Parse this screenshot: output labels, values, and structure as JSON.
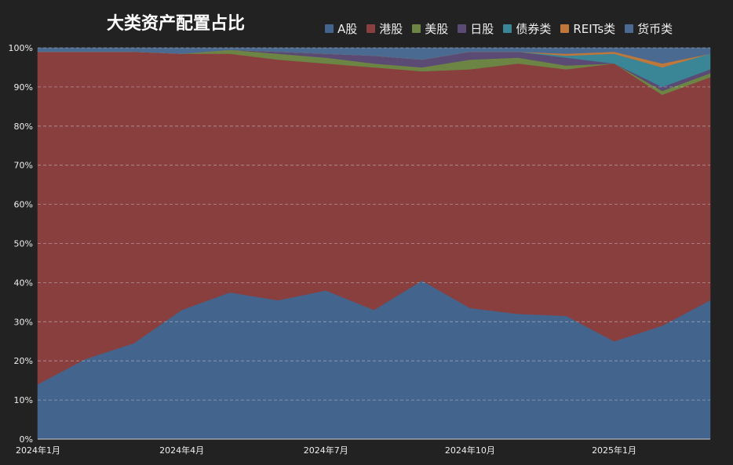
{
  "chart_data": {
    "type": "area",
    "stacked": true,
    "title": "大类资产配置占比",
    "x": [
      "2024-01",
      "2024-02",
      "2024-03",
      "2024-04",
      "2024-05",
      "2024-06",
      "2024-07",
      "2024-08",
      "2024-09",
      "2024-10",
      "2024-11",
      "2024-12",
      "2025-01",
      "2025-02",
      "2025-03"
    ],
    "x_tick_labels": [
      "2024年1月",
      "2024年4月",
      "2024年7月",
      "2024年10月",
      "2025年1月"
    ],
    "x_tick_indices": [
      0,
      3,
      6,
      9,
      12
    ],
    "y_tick_labels": [
      "0%",
      "10%",
      "20%",
      "30%",
      "40%",
      "50%",
      "60%",
      "70%",
      "80%",
      "90%",
      "100%"
    ],
    "ylim": [
      0,
      100
    ],
    "y_unit": "%",
    "grid": true,
    "legend_position": "top",
    "series": [
      {
        "name": "A股",
        "color": "#43658d",
        "values": [
          14,
          20.5,
          24.5,
          33,
          37.5,
          35.5,
          38,
          33,
          40.5,
          33.5,
          32,
          31.5,
          25,
          29,
          35.5
        ]
      },
      {
        "name": "港股",
        "color": "#8a3f3f",
        "values": [
          85,
          78.5,
          74.5,
          65.5,
          61,
          61.5,
          58,
          62,
          53.5,
          61,
          64,
          63,
          71,
          59,
          57
        ]
      },
      {
        "name": "美股",
        "color": "#6c8544",
        "values": [
          0,
          0,
          0,
          0,
          1,
          1.5,
          1.5,
          1,
          1,
          2.5,
          1.5,
          1,
          0,
          1,
          1
        ]
      },
      {
        "name": "日股",
        "color": "#5b4a74",
        "values": [
          0,
          0,
          0,
          0,
          0,
          0.5,
          1,
          2,
          2,
          2,
          1.5,
          2,
          0,
          1,
          1
        ]
      },
      {
        "name": "债券类",
        "color": "#3a8596",
        "values": [
          0,
          0,
          0,
          0,
          0,
          0,
          0,
          0,
          0,
          0,
          0,
          0.5,
          2.5,
          5,
          4
        ]
      },
      {
        "name": "REITs类",
        "color": "#c0783a",
        "values": [
          0,
          0,
          0,
          0,
          0,
          0,
          0,
          0,
          0,
          0,
          0,
          0.5,
          0.5,
          1,
          0
        ]
      },
      {
        "name": "货币类",
        "color": "#4a6a92",
        "values": [
          1,
          1,
          1,
          1.5,
          0.5,
          1,
          1.5,
          2,
          3,
          1,
          1,
          1.5,
          1,
          4,
          1.5
        ]
      }
    ]
  }
}
